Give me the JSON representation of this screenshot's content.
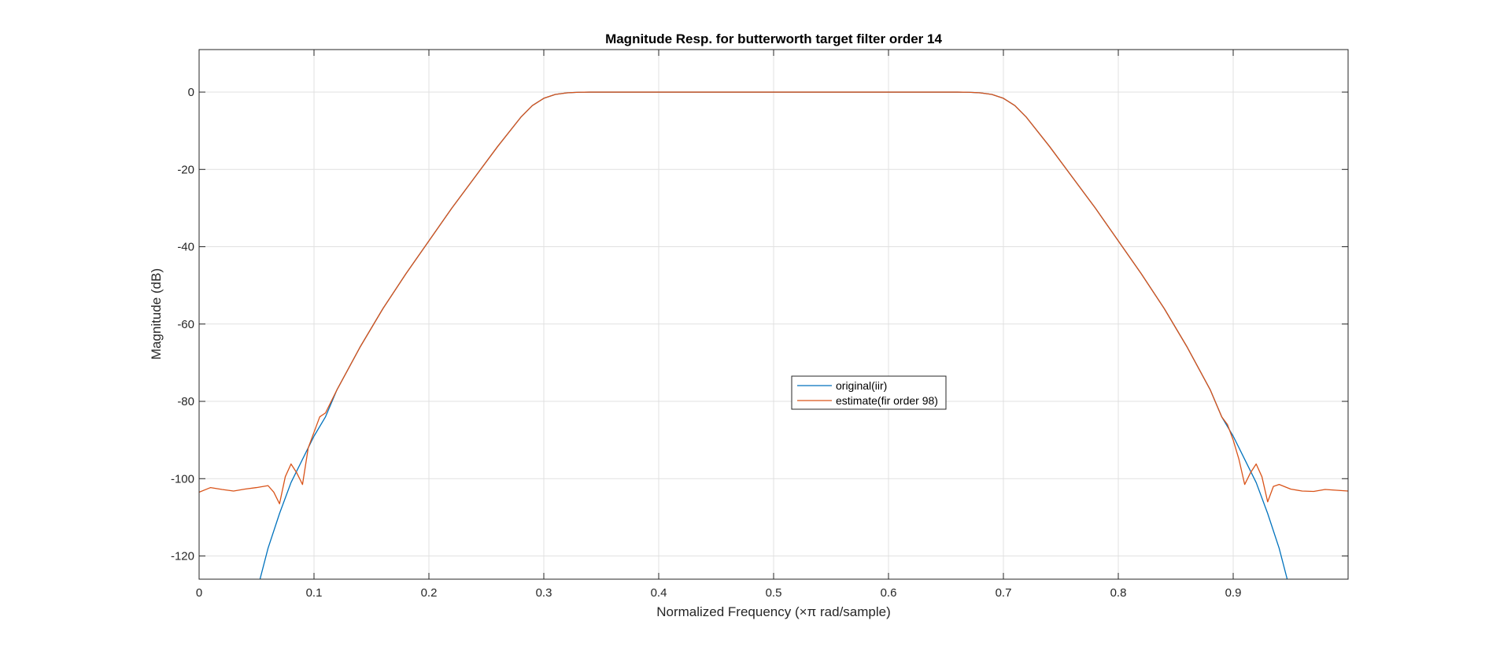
{
  "chart_data": {
    "type": "line",
    "title": "Magnitude Resp. for butterworth target filter order 14",
    "xlabel": "Normalized Frequency (×π rad/sample)",
    "ylabel": "Magnitude (dB)",
    "xlim": [
      0,
      1
    ],
    "ylim": [
      -126,
      11
    ],
    "xticks": [
      0,
      0.1,
      0.2,
      0.3,
      0.4,
      0.5,
      0.6,
      0.7,
      0.8,
      0.9
    ],
    "xtick_labels": [
      "0",
      "0.1",
      "0.2",
      "0.3",
      "0.4",
      "0.5",
      "0.6",
      "0.7",
      "0.8",
      "0.9"
    ],
    "yticks": [
      0,
      -20,
      -40,
      -60,
      -80,
      -100,
      -120
    ],
    "ytick_labels": [
      "0",
      "-20",
      "-40",
      "-60",
      "-80",
      "-100",
      "-120"
    ],
    "grid": true,
    "legend_position": "center",
    "series": [
      {
        "name": "original(iir)",
        "color": "#0072BD",
        "x": [
          0.053,
          0.06,
          0.07,
          0.08,
          0.09,
          0.1,
          0.11,
          0.12,
          0.14,
          0.16,
          0.18,
          0.2,
          0.22,
          0.24,
          0.26,
          0.28,
          0.29,
          0.3,
          0.31,
          0.32,
          0.33,
          0.34,
          0.35,
          0.4,
          0.5,
          0.6,
          0.65,
          0.66,
          0.67,
          0.68,
          0.69,
          0.7,
          0.71,
          0.72,
          0.74,
          0.76,
          0.78,
          0.8,
          0.82,
          0.84,
          0.86,
          0.88,
          0.89,
          0.9,
          0.91,
          0.92,
          0.93,
          0.94,
          0.947
        ],
        "y": [
          -126,
          -118,
          -109,
          -101,
          -95,
          -89,
          -84,
          -77,
          -66,
          -56,
          -47,
          -38.5,
          -30,
          -22,
          -14,
          -6.5,
          -3.5,
          -1.6,
          -0.6,
          -0.2,
          -0.05,
          0,
          0,
          0,
          0,
          0,
          0,
          0,
          -0.05,
          -0.2,
          -0.6,
          -1.6,
          -3.5,
          -6.5,
          -14,
          -22,
          -30,
          -38.5,
          -47,
          -56,
          -66,
          -77,
          -84,
          -89,
          -95,
          -101,
          -109,
          -118,
          -126
        ]
      },
      {
        "name": "estimate(fir order 98)",
        "color": "#D95319",
        "x": [
          0,
          0.01,
          0.02,
          0.03,
          0.04,
          0.05,
          0.06,
          0.065,
          0.07,
          0.075,
          0.08,
          0.085,
          0.09,
          0.095,
          0.1,
          0.105,
          0.11,
          0.12,
          0.14,
          0.16,
          0.18,
          0.2,
          0.22,
          0.24,
          0.26,
          0.28,
          0.29,
          0.3,
          0.31,
          0.32,
          0.33,
          0.34,
          0.35,
          0.4,
          0.5,
          0.6,
          0.65,
          0.66,
          0.67,
          0.68,
          0.69,
          0.7,
          0.71,
          0.72,
          0.74,
          0.76,
          0.78,
          0.8,
          0.82,
          0.84,
          0.86,
          0.88,
          0.89,
          0.895,
          0.9,
          0.905,
          0.91,
          0.915,
          0.92,
          0.925,
          0.93,
          0.935,
          0.94,
          0.95,
          0.96,
          0.97,
          0.98,
          0.99,
          1.0
        ],
        "y": [
          -103.5,
          -102.3,
          -102.8,
          -103.2,
          -102.7,
          -102.3,
          -101.8,
          -103.5,
          -106.5,
          -99.5,
          -96.2,
          -98.5,
          -101.5,
          -92,
          -88,
          -84,
          -83,
          -77,
          -66,
          -56,
          -47,
          -38.5,
          -30,
          -22,
          -14,
          -6.5,
          -3.5,
          -1.6,
          -0.6,
          -0.2,
          -0.05,
          0,
          0,
          0,
          0,
          0,
          0,
          0,
          -0.05,
          -0.2,
          -0.6,
          -1.6,
          -3.5,
          -6.5,
          -14,
          -22,
          -30,
          -38.5,
          -47,
          -56,
          -66,
          -77,
          -84,
          -86,
          -90,
          -95,
          -101.5,
          -98.5,
          -96.2,
          -99.5,
          -106,
          -102,
          -101.5,
          -102.7,
          -103.2,
          -103.3,
          -102.8,
          -103,
          -103.2
        ]
      }
    ]
  }
}
